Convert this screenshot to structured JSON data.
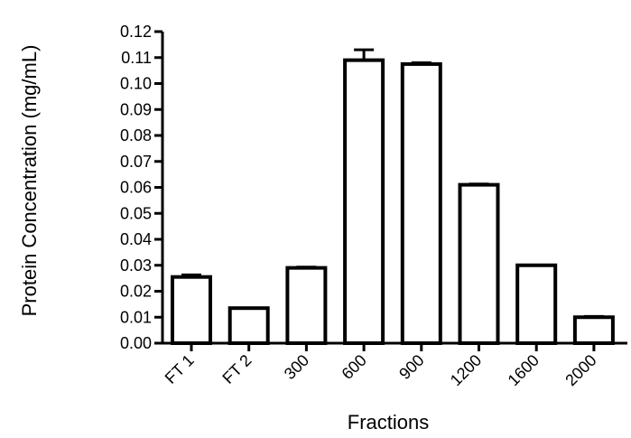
{
  "chart_data": {
    "type": "bar",
    "xlabel": "Fractions",
    "ylabel": "Protein Concentration (mg/mL)",
    "ylim": [
      0,
      0.12
    ],
    "yticks": [
      "0.00",
      "0.01",
      "0.02",
      "0.03",
      "0.04",
      "0.05",
      "0.06",
      "0.07",
      "0.08",
      "0.09",
      "0.10",
      "0.11",
      "0.12"
    ],
    "categories": [
      "FT 1",
      "FT 2",
      "300",
      "600",
      "900",
      "1200",
      "1600",
      "2000"
    ],
    "values": [
      0.0255,
      0.0135,
      0.029,
      0.109,
      0.1075,
      0.061,
      0.03,
      0.01
    ],
    "errors": [
      0.0008,
      0.0,
      0.0003,
      0.004,
      0.0005,
      0.0003,
      0.0,
      0.0003
    ],
    "grid": false,
    "legend": "none"
  }
}
